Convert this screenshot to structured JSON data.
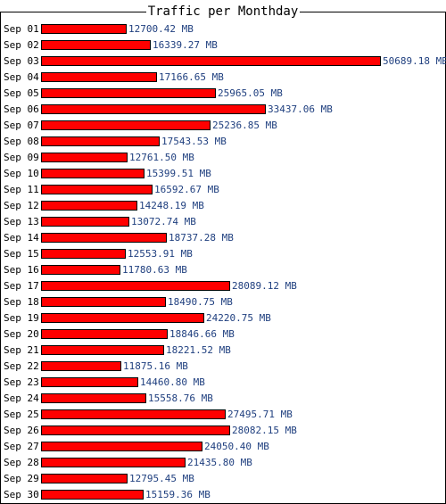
{
  "chart_data": {
    "type": "bar",
    "orientation": "horizontal",
    "title": "Traffic per Monthday",
    "unit": "MB",
    "bar_color": "#ff0000",
    "label_color": "#1f3f7f",
    "categories": [
      "Sep 01",
      "Sep 02",
      "Sep 03",
      "Sep 04",
      "Sep 05",
      "Sep 06",
      "Sep 07",
      "Sep 08",
      "Sep 09",
      "Sep 10",
      "Sep 11",
      "Sep 12",
      "Sep 13",
      "Sep 14",
      "Sep 15",
      "Sep 16",
      "Sep 17",
      "Sep 18",
      "Sep 19",
      "Sep 20",
      "Sep 21",
      "Sep 22",
      "Sep 23",
      "Sep 24",
      "Sep 25",
      "Sep 26",
      "Sep 27",
      "Sep 28",
      "Sep 29",
      "Sep 30"
    ],
    "values": [
      12700.42,
      16339.27,
      50689.18,
      17166.65,
      25965.05,
      33437.06,
      25236.85,
      17543.53,
      12761.5,
      15399.51,
      16592.67,
      14248.19,
      13072.74,
      18737.28,
      12553.91,
      11780.63,
      28089.12,
      18490.75,
      24220.75,
      18846.66,
      18221.52,
      11875.16,
      14460.8,
      15558.76,
      27495.71,
      28082.15,
      24050.4,
      21435.8,
      12795.45,
      15159.36
    ],
    "value_labels": [
      "12700.42 MB",
      "16339.27 MB",
      "50689.18 MB",
      "17166.65 MB",
      "25965.05 MB",
      "33437.06 MB",
      "25236.85 MB",
      "17543.53 MB",
      "12761.50 MB",
      "15399.51 MB",
      "16592.67 MB",
      "14248.19 MB",
      "13072.74 MB",
      "18737.28 MB",
      "12553.91 MB",
      "11780.63 MB",
      "28089.12 MB",
      "18490.75 MB",
      "24220.75 MB",
      "18846.66 MB",
      "18221.52 MB",
      "11875.16 MB",
      "14460.80 MB",
      "15558.76 MB",
      "27495.71 MB",
      "28082.15 MB",
      "24050.40 MB",
      "21435.80 MB",
      "12795.45 MB",
      "15159.36 MB"
    ]
  }
}
